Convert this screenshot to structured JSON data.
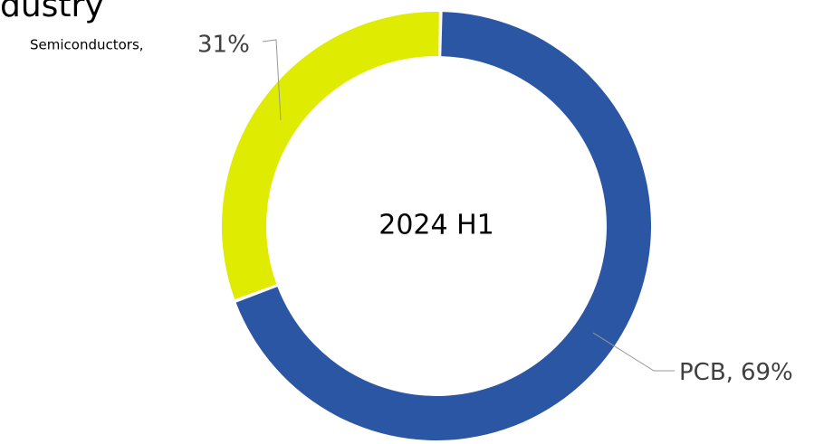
{
  "chart_data": {
    "type": "donut",
    "title": "dustry",
    "center_label": "2024 H1",
    "categories": [
      "PCB,",
      "Semiconductors,"
    ],
    "values": [
      69,
      31
    ],
    "value_labels": [
      "69%",
      "31%"
    ],
    "colors": [
      "#2b56a3",
      "#dfeb00"
    ]
  }
}
